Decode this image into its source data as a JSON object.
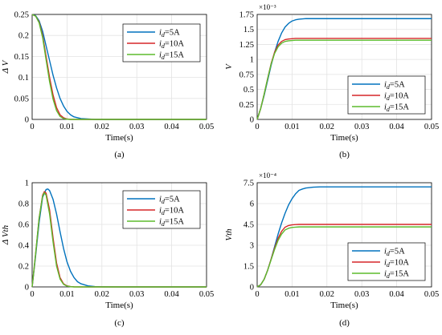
{
  "chart_data": [
    {
      "type": "line",
      "panel_label": "(a)",
      "xlabel": "Time(s)",
      "ylabel": "Δ V",
      "y_multiplier": "",
      "xlim": [
        0,
        0.05
      ],
      "ylim": [
        0,
        0.25
      ],
      "xticks": [
        "0",
        "0.01",
        "0.02",
        "0.03",
        "0.04",
        "0.05"
      ],
      "yticks": [
        "0",
        "0.05",
        "0.1",
        "0.15",
        "0.2",
        "0.25"
      ],
      "legend_position": "top-right",
      "series": [
        {
          "name": "i_d=5A",
          "color": "#0072BD",
          "x": [
            0,
            0.001,
            0.002,
            0.003,
            0.004,
            0.005,
            0.006,
            0.007,
            0.008,
            0.009,
            0.01,
            0.011,
            0.012,
            0.014,
            0.016,
            0.018,
            0.02,
            0.025,
            0.03,
            0.04,
            0.05
          ],
          "y": [
            0.25,
            0.247,
            0.235,
            0.21,
            0.175,
            0.14,
            0.105,
            0.075,
            0.05,
            0.032,
            0.019,
            0.011,
            0.006,
            0.002,
            0.001,
            0,
            0,
            0,
            0,
            0,
            0
          ]
        },
        {
          "name": "i_d=10A",
          "color": "#D62728",
          "x": [
            0,
            0.001,
            0.002,
            0.003,
            0.004,
            0.005,
            0.006,
            0.007,
            0.008,
            0.009,
            0.01,
            0.011,
            0.012,
            0.014,
            0.016,
            0.02,
            0.03,
            0.04,
            0.05
          ],
          "y": [
            0.25,
            0.246,
            0.232,
            0.2,
            0.15,
            0.1,
            0.058,
            0.028,
            0.011,
            0.004,
            0.001,
            0,
            0,
            0,
            0,
            0,
            0,
            0,
            0
          ]
        },
        {
          "name": "i_d=15A",
          "color": "#5DBB2D",
          "x": [
            0,
            0.001,
            0.002,
            0.003,
            0.004,
            0.005,
            0.006,
            0.007,
            0.008,
            0.009,
            0.01,
            0.011,
            0.012,
            0.014,
            0.016,
            0.02,
            0.03,
            0.04,
            0.05
          ],
          "y": [
            0.25,
            0.246,
            0.23,
            0.195,
            0.142,
            0.09,
            0.048,
            0.021,
            0.007,
            0.002,
            0.0005,
            0,
            0,
            0,
            0,
            0,
            0,
            0,
            0
          ]
        }
      ]
    },
    {
      "type": "line",
      "panel_label": "(b)",
      "xlabel": "Time(s)",
      "ylabel": "V",
      "y_multiplier": "×10⁻³",
      "xlim": [
        0,
        0.05
      ],
      "ylim": [
        0,
        1.75
      ],
      "xticks": [
        "0",
        "0.01",
        "0.02",
        "0.03",
        "0.04",
        "0.05"
      ],
      "yticks": [
        "0",
        "0.25",
        "0.5",
        "0.75",
        "1",
        "1.25",
        "1.5",
        "1.75"
      ],
      "legend_position": "bottom-right",
      "series": [
        {
          "name": "i_d=5A",
          "color": "#0072BD",
          "x": [
            0,
            0.001,
            0.002,
            0.003,
            0.004,
            0.005,
            0.006,
            0.007,
            0.008,
            0.009,
            0.01,
            0.011,
            0.012,
            0.014,
            0.016,
            0.02,
            0.03,
            0.04,
            0.05
          ],
          "y": [
            0,
            0.18,
            0.4,
            0.65,
            0.9,
            1.12,
            1.3,
            1.44,
            1.54,
            1.6,
            1.64,
            1.66,
            1.67,
            1.68,
            1.68,
            1.68,
            1.68,
            1.68,
            1.68
          ]
        },
        {
          "name": "i_d=10A",
          "color": "#D62728",
          "x": [
            0,
            0.001,
            0.002,
            0.003,
            0.004,
            0.005,
            0.006,
            0.007,
            0.008,
            0.009,
            0.01,
            0.011,
            0.012,
            0.014,
            0.016,
            0.02,
            0.03,
            0.04,
            0.05
          ],
          "y": [
            0,
            0.18,
            0.42,
            0.68,
            0.93,
            1.12,
            1.24,
            1.3,
            1.33,
            1.34,
            1.345,
            1.35,
            1.35,
            1.35,
            1.35,
            1.35,
            1.35,
            1.35,
            1.35
          ]
        },
        {
          "name": "i_d=15A",
          "color": "#5DBB2D",
          "x": [
            0,
            0.001,
            0.002,
            0.003,
            0.004,
            0.005,
            0.006,
            0.007,
            0.008,
            0.009,
            0.01,
            0.011,
            0.012,
            0.014,
            0.016,
            0.02,
            0.03,
            0.04,
            0.05
          ],
          "y": [
            0,
            0.18,
            0.42,
            0.68,
            0.92,
            1.1,
            1.21,
            1.27,
            1.3,
            1.31,
            1.315,
            1.32,
            1.32,
            1.32,
            1.32,
            1.32,
            1.32,
            1.32,
            1.32
          ]
        }
      ]
    },
    {
      "type": "line",
      "panel_label": "(c)",
      "xlabel": "Time(s)",
      "ylabel": "Δ Vth",
      "y_multiplier": "",
      "xlim": [
        0,
        0.05
      ],
      "ylim": [
        0,
        1
      ],
      "xticks": [
        "0",
        "0.01",
        "0.02",
        "0.03",
        "0.04",
        "0.05"
      ],
      "yticks": [
        "0",
        "0.2",
        "0.4",
        "0.6",
        "0.8",
        "1"
      ],
      "legend_position": "top-right",
      "series": [
        {
          "name": "i_d=5A",
          "color": "#0072BD",
          "x": [
            0,
            0.001,
            0.002,
            0.003,
            0.004,
            0.0045,
            0.005,
            0.006,
            0.007,
            0.008,
            0.009,
            0.01,
            0.011,
            0.012,
            0.013,
            0.014,
            0.016,
            0.018,
            0.02,
            0.025,
            0.03,
            0.04,
            0.05
          ],
          "y": [
            0,
            0.3,
            0.62,
            0.86,
            0.935,
            0.94,
            0.925,
            0.84,
            0.7,
            0.53,
            0.37,
            0.24,
            0.15,
            0.09,
            0.05,
            0.03,
            0.01,
            0.003,
            0.001,
            0,
            0,
            0,
            0
          ]
        },
        {
          "name": "i_d=10A",
          "color": "#D62728",
          "x": [
            0,
            0.001,
            0.002,
            0.003,
            0.0035,
            0.004,
            0.005,
            0.006,
            0.007,
            0.008,
            0.009,
            0.01,
            0.011,
            0.012,
            0.014,
            0.016,
            0.02,
            0.03,
            0.04,
            0.05
          ],
          "y": [
            0,
            0.32,
            0.66,
            0.88,
            0.915,
            0.9,
            0.74,
            0.47,
            0.23,
            0.09,
            0.03,
            0.01,
            0.003,
            0.001,
            0,
            0,
            0,
            0,
            0,
            0
          ]
        },
        {
          "name": "i_d=15A",
          "color": "#5DBB2D",
          "x": [
            0,
            0.001,
            0.002,
            0.003,
            0.0035,
            0.004,
            0.005,
            0.006,
            0.007,
            0.008,
            0.009,
            0.01,
            0.011,
            0.012,
            0.014,
            0.016,
            0.02,
            0.03,
            0.04,
            0.05
          ],
          "y": [
            0,
            0.32,
            0.66,
            0.87,
            0.905,
            0.88,
            0.7,
            0.43,
            0.2,
            0.075,
            0.025,
            0.008,
            0.002,
            0,
            0,
            0,
            0,
            0,
            0,
            0
          ]
        }
      ]
    },
    {
      "type": "line",
      "panel_label": "(d)",
      "xlabel": "Time(s)",
      "ylabel": "Vth",
      "y_multiplier": "×10⁻⁴",
      "xlim": [
        0,
        0.05
      ],
      "ylim": [
        0,
        7.5
      ],
      "xticks": [
        "0",
        "0.01",
        "0.02",
        "0.03",
        "0.04",
        "0.05"
      ],
      "yticks": [
        "0",
        "1.5",
        "3",
        "4.5",
        "6",
        "7.5"
      ],
      "legend_position": "bottom-right",
      "series": [
        {
          "name": "i_d=5A",
          "color": "#0072BD",
          "x": [
            0,
            0.001,
            0.002,
            0.003,
            0.004,
            0.005,
            0.006,
            0.007,
            0.008,
            0.009,
            0.01,
            0.011,
            0.012,
            0.013,
            0.014,
            0.016,
            0.018,
            0.02,
            0.03,
            0.04,
            0.05
          ],
          "y": [
            0,
            0.15,
            0.55,
            1.2,
            2.0,
            2.9,
            3.8,
            4.6,
            5.3,
            5.9,
            6.35,
            6.7,
            6.95,
            7.05,
            7.12,
            7.18,
            7.2,
            7.2,
            7.2,
            7.2,
            7.2
          ]
        },
        {
          "name": "i_d=10A",
          "color": "#D62728",
          "x": [
            0,
            0.001,
            0.002,
            0.003,
            0.004,
            0.005,
            0.006,
            0.007,
            0.008,
            0.009,
            0.01,
            0.011,
            0.012,
            0.014,
            0.016,
            0.02,
            0.03,
            0.04,
            0.05
          ],
          "y": [
            0,
            0.15,
            0.55,
            1.2,
            2.0,
            2.8,
            3.5,
            4.0,
            4.3,
            4.42,
            4.47,
            4.49,
            4.5,
            4.5,
            4.5,
            4.5,
            4.5,
            4.5,
            4.5
          ]
        },
        {
          "name": "i_d=15A",
          "color": "#5DBB2D",
          "x": [
            0,
            0.001,
            0.002,
            0.003,
            0.004,
            0.005,
            0.006,
            0.007,
            0.008,
            0.009,
            0.01,
            0.011,
            0.012,
            0.014,
            0.016,
            0.02,
            0.03,
            0.04,
            0.05
          ],
          "y": [
            0,
            0.15,
            0.55,
            1.2,
            1.95,
            2.7,
            3.35,
            3.8,
            4.1,
            4.22,
            4.28,
            4.3,
            4.32,
            4.32,
            4.32,
            4.32,
            4.32,
            4.32,
            4.32
          ]
        }
      ]
    }
  ]
}
